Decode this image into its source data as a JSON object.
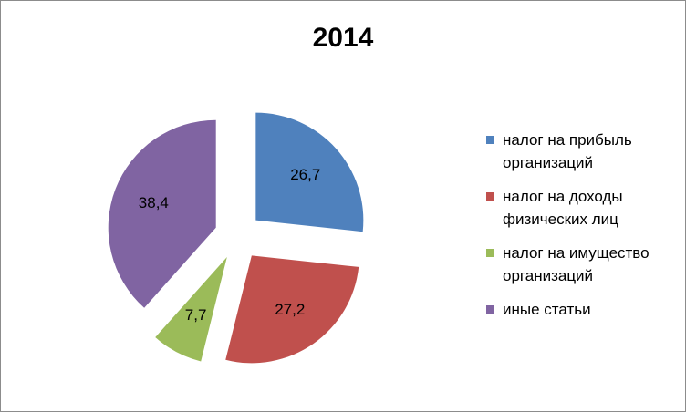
{
  "chart_data": {
    "type": "pie",
    "title": "2014",
    "categories": [
      "налог на прибыль организаций",
      "налог на доходы физических лиц",
      "налог на имущество организаций",
      "иные статьи"
    ],
    "values": [
      26.7,
      27.2,
      7.7,
      38.4
    ],
    "value_labels": [
      "26,7",
      "27,2",
      "7,7",
      "38,4"
    ],
    "colors": [
      "#4f81bd",
      "#c0504d",
      "#9bbb59",
      "#8064a2"
    ],
    "exploded": true,
    "legend": "right"
  }
}
